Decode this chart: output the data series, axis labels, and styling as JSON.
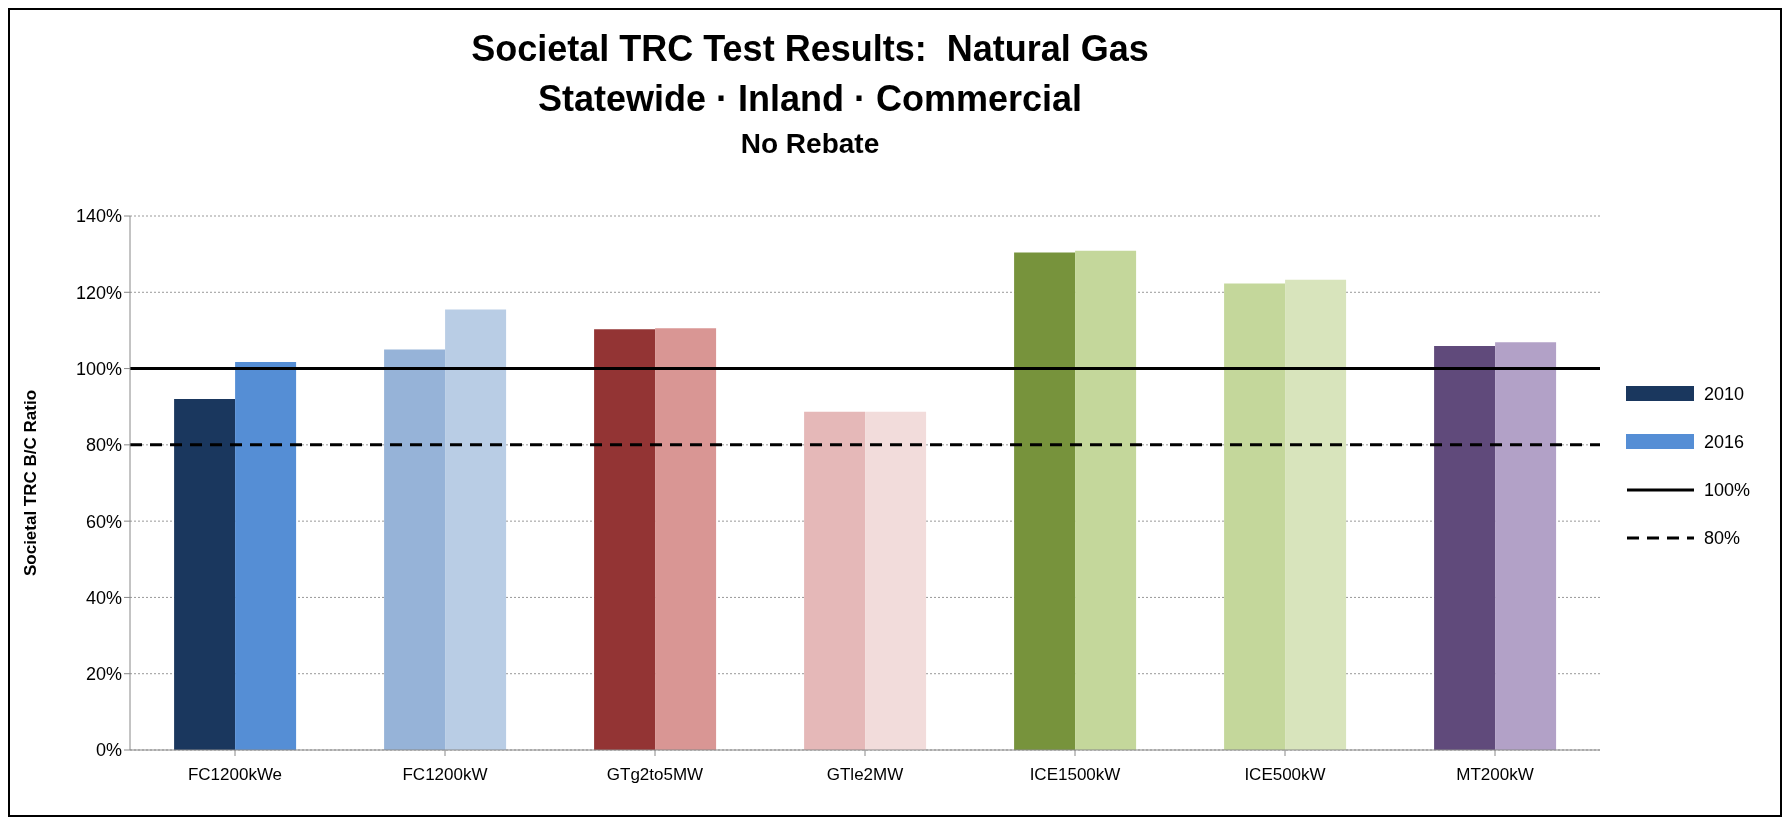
{
  "chart_data": {
    "type": "bar",
    "title": "Societal TRC Test Results:  Natural Gas\nStatewide · Inland · Commercial",
    "subtitle": "No Rebate",
    "ylabel": "Societal TRC B/C Ratio",
    "categories": [
      "FC1200kWe",
      "FC1200kW",
      "GTg2to5MW",
      "GTle2MW",
      "ICE1500kW",
      "ICE500kW",
      "MT200kW"
    ],
    "series": [
      {
        "name": "2010",
        "color": "#1a375e",
        "colors": [
          "#1a375e",
          "#96b3d8",
          "#933434",
          "#e5b8b8",
          "#77933c",
          "#c4d79b",
          "#604a7b"
        ],
        "values": [
          92,
          105,
          110.3,
          88.7,
          130.4,
          122.3,
          105.9
        ]
      },
      {
        "name": "2016",
        "color": "#558ed5",
        "colors": [
          "#558ed5",
          "#b9cde5",
          "#d99694",
          "#f2dcdb",
          "#c4d79b",
          "#d8e4bc",
          "#b2a1c7"
        ],
        "values": [
          101.7,
          115.5,
          110.6,
          88.7,
          130.9,
          123.3,
          106.9
        ]
      }
    ],
    "ylim": [
      0,
      140
    ],
    "yticks": [
      {
        "value": 0,
        "label": "0%"
      },
      {
        "value": 20,
        "label": "20%"
      },
      {
        "value": 40,
        "label": "40%"
      },
      {
        "value": 60,
        "label": "60%"
      },
      {
        "value": 80,
        "label": "80%"
      },
      {
        "value": 100,
        "label": "100%"
      },
      {
        "value": 120,
        "label": "120%"
      },
      {
        "value": 140,
        "label": "140%"
      }
    ],
    "ref_lines": [
      {
        "axis": "y",
        "value": 100,
        "label": "100%",
        "color": "#000000",
        "line_style": "solid"
      },
      {
        "axis": "y",
        "value": 80,
        "label": "80%",
        "color": "#000000",
        "line_style": "dashed"
      }
    ],
    "grid": "y",
    "legend": "right"
  }
}
